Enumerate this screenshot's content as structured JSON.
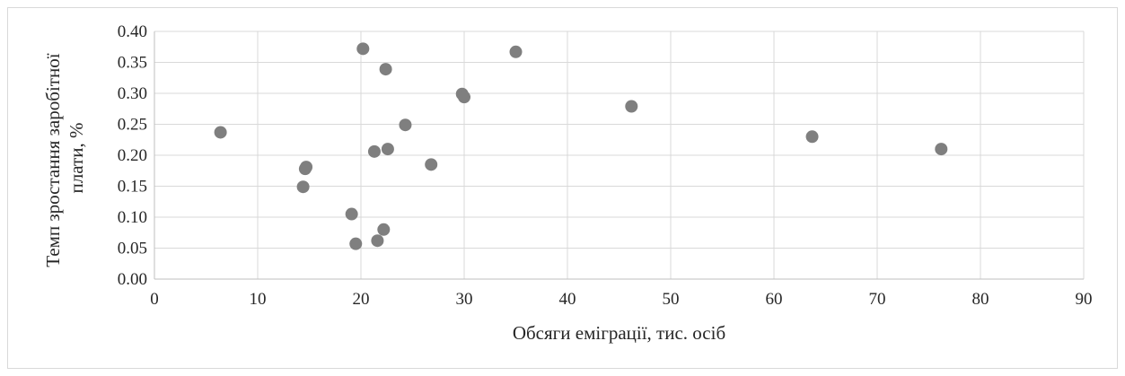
{
  "chart_data": {
    "type": "scatter",
    "xlabel": "Обсяги еміграції, тис. осіб",
    "ylabel_lines": [
      "Темп зростання заробітної",
      "плати, %"
    ],
    "xlim": [
      0,
      90
    ],
    "ylim": [
      0,
      0.4
    ],
    "x_ticks": [
      "0",
      "10",
      "20",
      "30",
      "40",
      "50",
      "60",
      "70",
      "80",
      "90"
    ],
    "y_ticks": [
      "0.00",
      "0.05",
      "0.10",
      "0.15",
      "0.20",
      "0.25",
      "0.30",
      "0.35",
      "0.40"
    ],
    "grid": true,
    "marker_color": "#7f7f7f",
    "points": [
      {
        "x": 6.4,
        "y": 0.237
      },
      {
        "x": 14.4,
        "y": 0.149
      },
      {
        "x": 14.6,
        "y": 0.178
      },
      {
        "x": 14.7,
        "y": 0.181
      },
      {
        "x": 19.1,
        "y": 0.105
      },
      {
        "x": 19.5,
        "y": 0.057
      },
      {
        "x": 20.2,
        "y": 0.372
      },
      {
        "x": 21.3,
        "y": 0.206
      },
      {
        "x": 21.6,
        "y": 0.062
      },
      {
        "x": 22.2,
        "y": 0.08
      },
      {
        "x": 22.4,
        "y": 0.339
      },
      {
        "x": 22.6,
        "y": 0.21
      },
      {
        "x": 24.3,
        "y": 0.249
      },
      {
        "x": 26.8,
        "y": 0.185
      },
      {
        "x": 29.8,
        "y": 0.299
      },
      {
        "x": 30.0,
        "y": 0.294
      },
      {
        "x": 35.0,
        "y": 0.367
      },
      {
        "x": 46.2,
        "y": 0.279
      },
      {
        "x": 63.7,
        "y": 0.23
      },
      {
        "x": 76.2,
        "y": 0.21
      }
    ]
  }
}
